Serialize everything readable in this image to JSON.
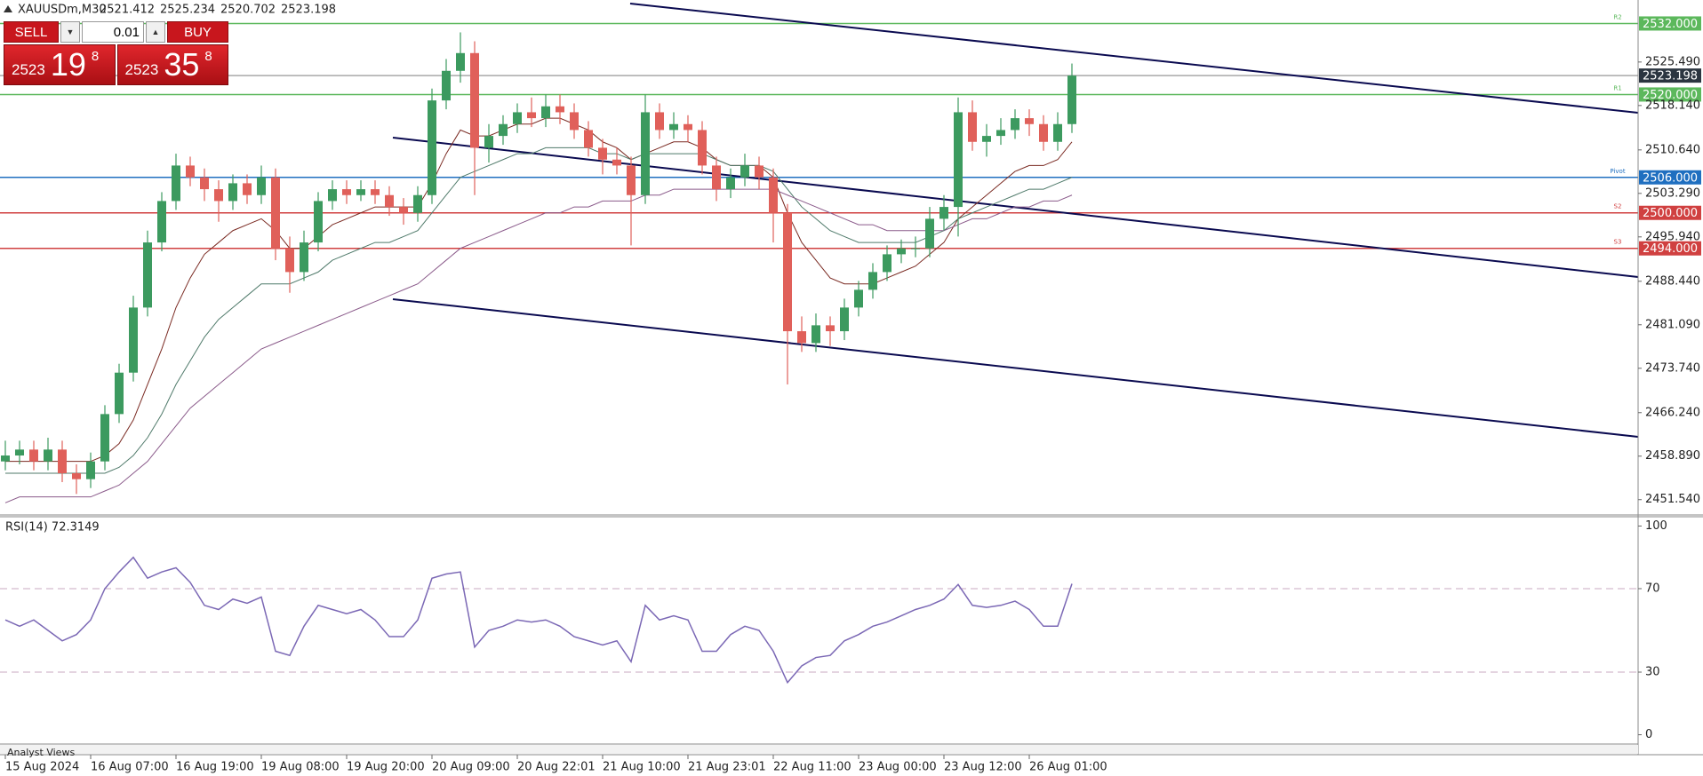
{
  "header": {
    "symbol": "XAUUSDm,M30",
    "ohlc": [
      2521.412,
      2525.234,
      2520.702,
      2523.198
    ]
  },
  "trade_panel": {
    "sell": "SELL",
    "lot": "0.01",
    "buy": "BUY",
    "bid": {
      "big": "2523",
      "mid": "19",
      "sup": "8"
    },
    "ask": {
      "big": "2523",
      "mid": "35",
      "sup": "8"
    }
  },
  "bottom_tab": "Analyst Views",
  "chart_data": [
    {
      "type": "candlestick",
      "categories": [
        "15 Aug 2024",
        null,
        null,
        null,
        null,
        null,
        "16 Aug 07:00",
        null,
        null,
        null,
        null,
        null,
        "16 Aug 19:00",
        null,
        null,
        null,
        null,
        null,
        "19 Aug 08:00",
        null,
        null,
        null,
        null,
        null,
        "19 Aug 20:00",
        null,
        null,
        null,
        null,
        null,
        "20 Aug 09:00",
        null,
        null,
        null,
        null,
        null,
        "20 Aug 22:01",
        null,
        null,
        null,
        null,
        null,
        "21 Aug 10:00",
        null,
        null,
        null,
        null,
        null,
        "21 Aug 23:01",
        null,
        null,
        null,
        null,
        null,
        "22 Aug 11:00",
        null,
        null,
        null,
        null,
        null,
        "23 Aug 00:00",
        null,
        null,
        null,
        null,
        null,
        "23 Aug 12:00",
        null,
        null,
        null,
        null,
        null,
        "26 Aug 01:00",
        null,
        null,
        null
      ],
      "open": [
        2458,
        2459,
        2460,
        2458,
        2460,
        2456,
        2455,
        2458,
        2466,
        2473,
        2484,
        2495,
        2502,
        2508,
        2506,
        2504,
        2502,
        2505,
        2503,
        2506,
        2494,
        2490,
        2495,
        2502,
        2504,
        2503,
        2504,
        2503,
        2501,
        2500,
        2503,
        2519,
        2524,
        2527,
        2511,
        2513,
        2515,
        2517,
        2516,
        2518,
        2517,
        2514,
        2511,
        2509,
        2508,
        2503,
        2517,
        2514,
        2515,
        2514,
        2508,
        2504,
        2506,
        2508,
        2506,
        2500,
        2480,
        2478,
        2481,
        2480,
        2484,
        2487,
        2490,
        2493,
        2494,
        2494,
        2499,
        2501,
        2517,
        2512,
        2513,
        2514,
        2516,
        2515,
        2512,
        2515
      ],
      "high": [
        2461.5,
        2461.5,
        2461.5,
        2462,
        2461.5,
        2457.5,
        2459.5,
        2467.5,
        2474.5,
        2486,
        2497,
        2503.5,
        2510,
        2509.5,
        2507.5,
        2505.5,
        2506.5,
        2506.5,
        2508,
        2507.5,
        2496,
        2497,
        2503.5,
        2505.5,
        2505.5,
        2505.5,
        2505.5,
        2504.5,
        2502.5,
        2504.5,
        2521,
        2526,
        2530.5,
        2529,
        2515,
        2516.5,
        2518.5,
        2519.5,
        2520,
        2520,
        2518.5,
        2515.5,
        2512.5,
        2511,
        2509.5,
        2520,
        2518.5,
        2517,
        2516.5,
        2515.5,
        2509.5,
        2507.5,
        2510,
        2509.5,
        2507.5,
        2501.5,
        2482.5,
        2483,
        2482.5,
        2485.5,
        2488.5,
        2491.5,
        2494.5,
        2495.5,
        2496,
        2501,
        2503,
        2519.5,
        2519,
        2515,
        2516,
        2517.5,
        2517.5,
        2516.5,
        2517,
        2525.234
      ],
      "low": [
        2456.5,
        2457.5,
        2456.5,
        2456.5,
        2454.5,
        2452.5,
        2453.5,
        2456.5,
        2464.5,
        2471.5,
        2482.5,
        2493.5,
        2500.5,
        2504.5,
        2502,
        2498.5,
        2500.5,
        2501.5,
        2501.5,
        2492,
        2486.5,
        2488.5,
        2493.5,
        2500.5,
        2501.5,
        2502,
        2501.5,
        2499.5,
        2498,
        2498.5,
        2501.5,
        2517.5,
        2522,
        2503,
        2508.5,
        2511.5,
        2513.5,
        2514.5,
        2514.5,
        2515,
        2512.5,
        2509.5,
        2506.5,
        2506.5,
        2494.5,
        2501.5,
        2512.5,
        2512.5,
        2512,
        2506.5,
        2502,
        2502.5,
        2504.5,
        2504,
        2495,
        2471,
        2476.5,
        2476.5,
        2477.5,
        2478.5,
        2482.5,
        2485.5,
        2488.5,
        2491.5,
        2492.5,
        2492.5,
        2497,
        2496,
        2510.5,
        2509.5,
        2511.5,
        2512.5,
        2513,
        2510.5,
        2510.5,
        2513.5
      ],
      "close": [
        2459,
        2460,
        2458,
        2460,
        2456,
        2455,
        2458,
        2466,
        2473,
        2484,
        2495,
        2502,
        2508,
        2506,
        2504,
        2502,
        2505,
        2503,
        2506,
        2494,
        2490,
        2495,
        2502,
        2504,
        2503,
        2504,
        2503,
        2501,
        2500,
        2503,
        2519,
        2524,
        2527,
        2511,
        2513,
        2515,
        2517,
        2516,
        2518,
        2517,
        2514,
        2511,
        2509,
        2508,
        2503,
        2517,
        2514,
        2515,
        2514,
        2508,
        2504,
        2506,
        2508,
        2506,
        2500,
        2480,
        2478,
        2481,
        2480,
        2484,
        2487,
        2490,
        2493,
        2494,
        2494,
        2499,
        2501,
        2517,
        2512,
        2513,
        2514,
        2516,
        2515,
        2512,
        2515,
        2523.198
      ],
      "up_color": "#3c9a5f",
      "down_color": "#e0605a",
      "moving_averages": [
        {
          "color": "#7a2a22",
          "values": [
            2458,
            2458,
            2458,
            2458,
            2458,
            2458,
            2458,
            2459,
            2461,
            2465,
            2471,
            2477,
            2484,
            2489,
            2493,
            2495,
            2497,
            2498,
            2499,
            2497,
            2494,
            2494,
            2496,
            2498,
            2499,
            2500,
            2501,
            2501,
            2501,
            2501,
            2505,
            2510,
            2514,
            2513,
            2513,
            2514,
            2515,
            2515,
            2516,
            2516,
            2515,
            2514,
            2512,
            2511,
            2509,
            2510,
            2511,
            2512,
            2512,
            2511,
            2509,
            2508,
            2508,
            2508,
            2506,
            2500,
            2495,
            2492,
            2489,
            2488,
            2488,
            2488,
            2489,
            2490,
            2491,
            2493,
            2495,
            2499,
            2501,
            2503,
            2505,
            2507,
            2508,
            2508,
            2509,
            2512
          ]
        },
        {
          "color": "#4f7a6a",
          "values": [
            2456,
            2456,
            2456,
            2456,
            2456,
            2456,
            2456,
            2456,
            2457,
            2459,
            2462,
            2466,
            2471,
            2475,
            2479,
            2482,
            2484,
            2486,
            2488,
            2488,
            2488,
            2489,
            2490,
            2492,
            2493,
            2494,
            2495,
            2495,
            2496,
            2497,
            2500,
            2503,
            2506,
            2507,
            2508,
            2509,
            2510,
            2510,
            2511,
            2511,
            2511,
            2511,
            2510,
            2510,
            2509,
            2510,
            2510,
            2510,
            2510,
            2510,
            2509,
            2508,
            2508,
            2508,
            2507,
            2504,
            2501,
            2499,
            2497,
            2496,
            2495,
            2495,
            2495,
            2495,
            2495,
            2496,
            2497,
            2499,
            2500,
            2501,
            2502,
            2503,
            2504,
            2504,
            2505,
            2506
          ]
        },
        {
          "color": "#8a5a8a",
          "values": [
            2451,
            2452,
            2452,
            2452,
            2452,
            2452,
            2452,
            2453,
            2454,
            2456,
            2458,
            2461,
            2464,
            2467,
            2469,
            2471,
            2473,
            2475,
            2477,
            2478,
            2479,
            2480,
            2481,
            2482,
            2483,
            2484,
            2485,
            2486,
            2487,
            2488,
            2490,
            2492,
            2494,
            2495,
            2496,
            2497,
            2498,
            2499,
            2500,
            2500,
            2501,
            2501,
            2502,
            2502,
            2502,
            2503,
            2503,
            2504,
            2504,
            2504,
            2504,
            2504,
            2504,
            2504,
            2504,
            2503,
            2502,
            2501,
            2500,
            2499,
            2498,
            2498,
            2497,
            2497,
            2497,
            2497,
            2497,
            2498,
            2499,
            2499,
            2500,
            2501,
            2501,
            2502,
            2502,
            2503
          ]
        }
      ],
      "levels": [
        {
          "value": 2532,
          "label": "2532.000",
          "tag": "R2",
          "color": "#5cb85c"
        },
        {
          "value": 2523.198,
          "color": "#a8a8a8",
          "box_color": "#2b3540"
        },
        {
          "value": 2520,
          "label": "2520.000",
          "tag": "R1",
          "color": "#5cb85c"
        },
        {
          "value": 2506,
          "label": "2506.000",
          "tag": "Pivot",
          "color": "#1f6fc0"
        },
        {
          "value": 2500,
          "label": "2500.000",
          "tag": "S2",
          "color": "#d04040"
        },
        {
          "value": 2494,
          "label": "2494.000",
          "tag": "S3",
          "color": "#d04040"
        }
      ],
      "ylim": [
        2449.25,
        2535.67
      ],
      "yticks": [
        {
          "value": 2451.54,
          "label": "2451.540"
        },
        {
          "value": 2458.89,
          "label": "2458.890"
        },
        {
          "value": 2466.24,
          "label": "2466.240"
        },
        {
          "value": 2473.74,
          "label": "2473.740"
        },
        {
          "value": 2481.09,
          "label": "2481.090"
        },
        {
          "value": 2488.44,
          "label": "2488.440"
        },
        {
          "value": 2495.94,
          "label": "2495.940"
        },
        {
          "value": 2503.29,
          "label": "2503.290"
        },
        {
          "value": 2510.64,
          "label": "2510.640"
        },
        {
          "value": 2518.14,
          "label": "2518.140"
        },
        {
          "value": 2525.49,
          "label": "2525.490"
        }
      ]
    },
    {
      "type": "line",
      "title": "RSI(14) 72.3149",
      "color": "#7b68b5",
      "values": [
        55,
        52,
        55,
        50,
        45,
        48,
        55,
        70,
        78,
        85,
        75,
        78,
        80,
        73,
        62,
        60,
        65,
        63,
        66,
        40,
        38,
        52,
        62,
        60,
        58,
        60,
        55,
        47,
        47,
        55,
        75,
        77,
        78,
        42,
        50,
        52,
        55,
        54,
        55,
        52,
        47,
        45,
        43,
        45,
        35,
        62,
        55,
        57,
        55,
        40,
        40,
        48,
        52,
        50,
        40,
        25,
        33,
        37,
        38,
        45,
        48,
        52,
        54,
        57,
        60,
        62,
        65,
        72,
        62,
        61,
        62,
        64,
        60,
        52,
        52,
        72.3149
      ],
      "levels": [
        30,
        70
      ],
      "ylim": [
        -3.6,
        103.6
      ],
      "yticks": [
        0,
        30,
        70,
        100
      ]
    }
  ]
}
